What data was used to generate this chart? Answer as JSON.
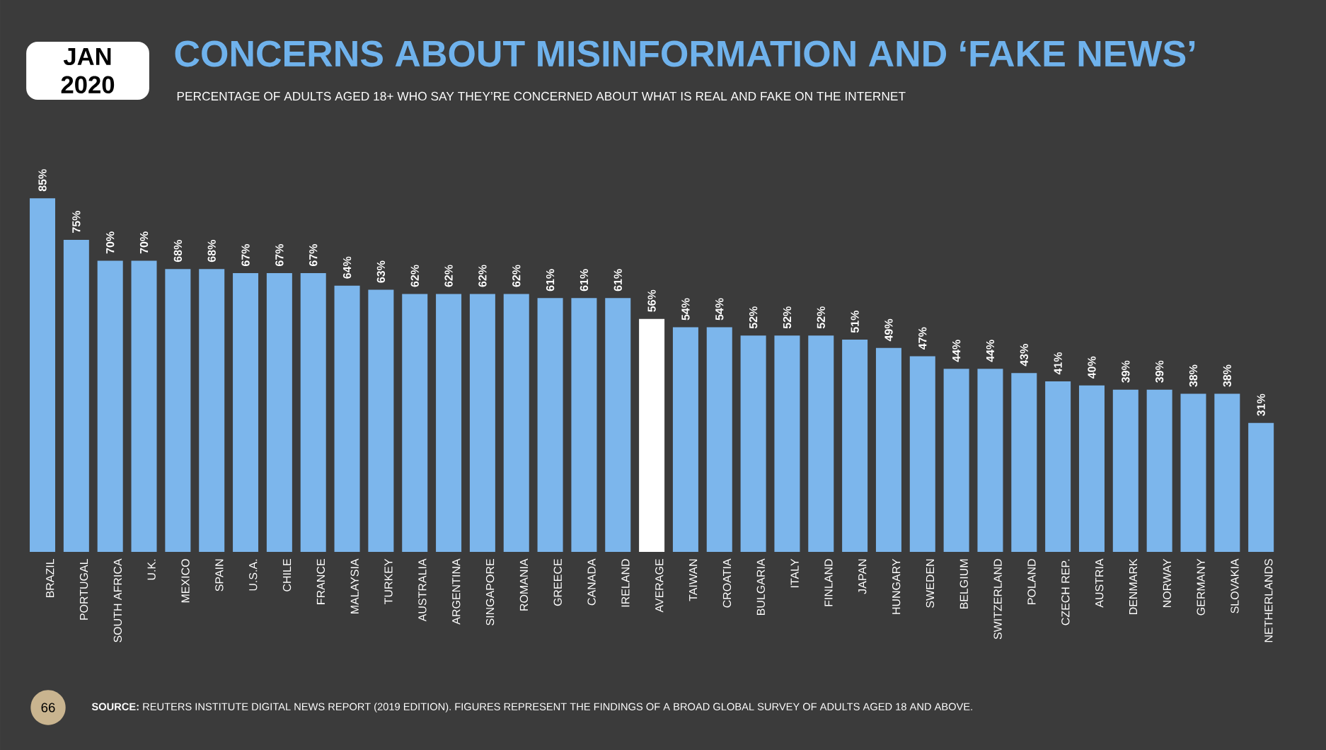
{
  "chart_data": {
    "type": "bar",
    "title": "CONCERNS ABOUT MISINFORMATION AND ‘FAKE NEWS’",
    "subtitle": "PERCENTAGE OF ADULTS AGED 18+ WHO SAY THEY’RE CONCERNED ABOUT WHAT IS REAL AND FAKE ON THE INTERNET",
    "categories": [
      "BRAZIL",
      "PORTUGAL",
      "SOUTH AFRICA",
      "U.K.",
      "MEXICO",
      "SPAIN",
      "U.S.A.",
      "CHILE",
      "FRANCE",
      "MALAYSIA",
      "TURKEY",
      "AUSTRALIA",
      "ARGENTINA",
      "SINGAPORE",
      "ROMANIA",
      "GREECE",
      "CANADA",
      "IRELAND",
      "AVERAGE",
      "TAIWAN",
      "CROATIA",
      "BULGARIA",
      "ITALY",
      "FINLAND",
      "JAPAN",
      "HUNGARY",
      "SWEDEN",
      "BELGIUM",
      "SWITZERLAND",
      "POLAND",
      "CZECH REP.",
      "AUSTRIA",
      "DENMARK",
      "NORWAY",
      "GERMANY",
      "SLOVAKIA",
      "NETHERLANDS"
    ],
    "values": [
      85,
      75,
      70,
      70,
      68,
      68,
      67,
      67,
      67,
      64,
      63,
      62,
      62,
      62,
      62,
      61,
      61,
      61,
      56,
      54,
      54,
      52,
      52,
      52,
      51,
      49,
      47,
      44,
      44,
      43,
      41,
      40,
      39,
      39,
      38,
      38,
      31
    ],
    "value_labels": [
      "85%",
      "75%",
      "70%",
      "70%",
      "68%",
      "68%",
      "67%",
      "67%",
      "67%",
      "64%",
      "63%",
      "62%",
      "62%",
      "62%",
      "62%",
      "61%",
      "61%",
      "61%",
      "56%",
      "54%",
      "54%",
      "52%",
      "52%",
      "52%",
      "51%",
      "49%",
      "47%",
      "44%",
      "44%",
      "43%",
      "41%",
      "40%",
      "39%",
      "39%",
      "38%",
      "38%",
      "31%"
    ],
    "colors": [
      "#7cb6ec",
      "#7cb6ec",
      "#7cb6ec",
      "#7cb6ec",
      "#7cb6ec",
      "#7cb6ec",
      "#7cb6ec",
      "#7cb6ec",
      "#7cb6ec",
      "#7cb6ec",
      "#7cb6ec",
      "#7cb6ec",
      "#7cb6ec",
      "#7cb6ec",
      "#7cb6ec",
      "#7cb6ec",
      "#7cb6ec",
      "#7cb6ec",
      "#ffffff",
      "#7cb6ec",
      "#7cb6ec",
      "#7cb6ec",
      "#7cb6ec",
      "#7cb6ec",
      "#7cb6ec",
      "#7cb6ec",
      "#7cb6ec",
      "#7cb6ec",
      "#7cb6ec",
      "#7cb6ec",
      "#7cb6ec",
      "#7cb6ec",
      "#7cb6ec",
      "#7cb6ec",
      "#7cb6ec",
      "#7cb6ec",
      "#7cb6ec"
    ],
    "annotations": [
      "JAN 2020",
      "**SOURCE:** REUTERS INSTITUTE DIGITAL NEWS REPORT (2019 EDITION). FIGURES REPRESENT THE FINDINGS OF A BROAD GLOBAL SURVEY OF ADULTS AGED 18 AND ABOVE.",
      "66"
    ]
  }
}
